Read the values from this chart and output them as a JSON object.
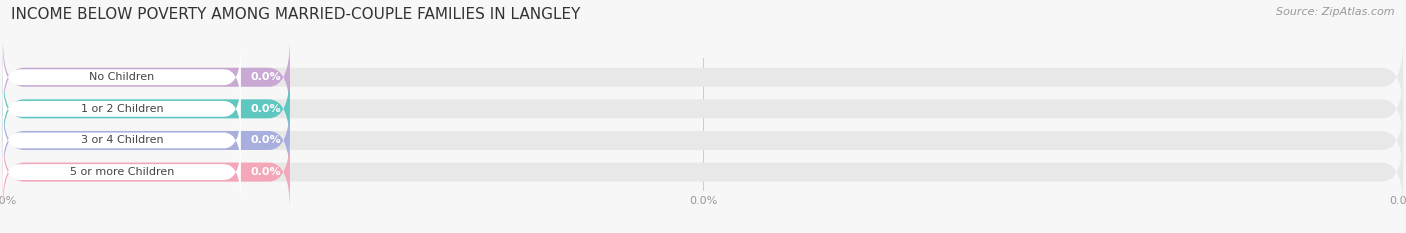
{
  "title": "INCOME BELOW POVERTY AMONG MARRIED-COUPLE FAMILIES IN LANGLEY",
  "source": "Source: ZipAtlas.com",
  "categories": [
    "No Children",
    "1 or 2 Children",
    "3 or 4 Children",
    "5 or more Children"
  ],
  "values": [
    0.0,
    0.0,
    0.0,
    0.0
  ],
  "bar_colors": [
    "#c9a8d4",
    "#5ec8c0",
    "#a8aedd",
    "#f4a7b9"
  ],
  "bar_bg_color": "#e8e8e8",
  "background_color": "#f7f7f7",
  "title_fontsize": 11,
  "value_label_color": "#ffffff",
  "category_label_color": "#444444",
  "tick_label_color": "#999999",
  "source_color": "#999999",
  "white_pill_color": "#ffffff"
}
